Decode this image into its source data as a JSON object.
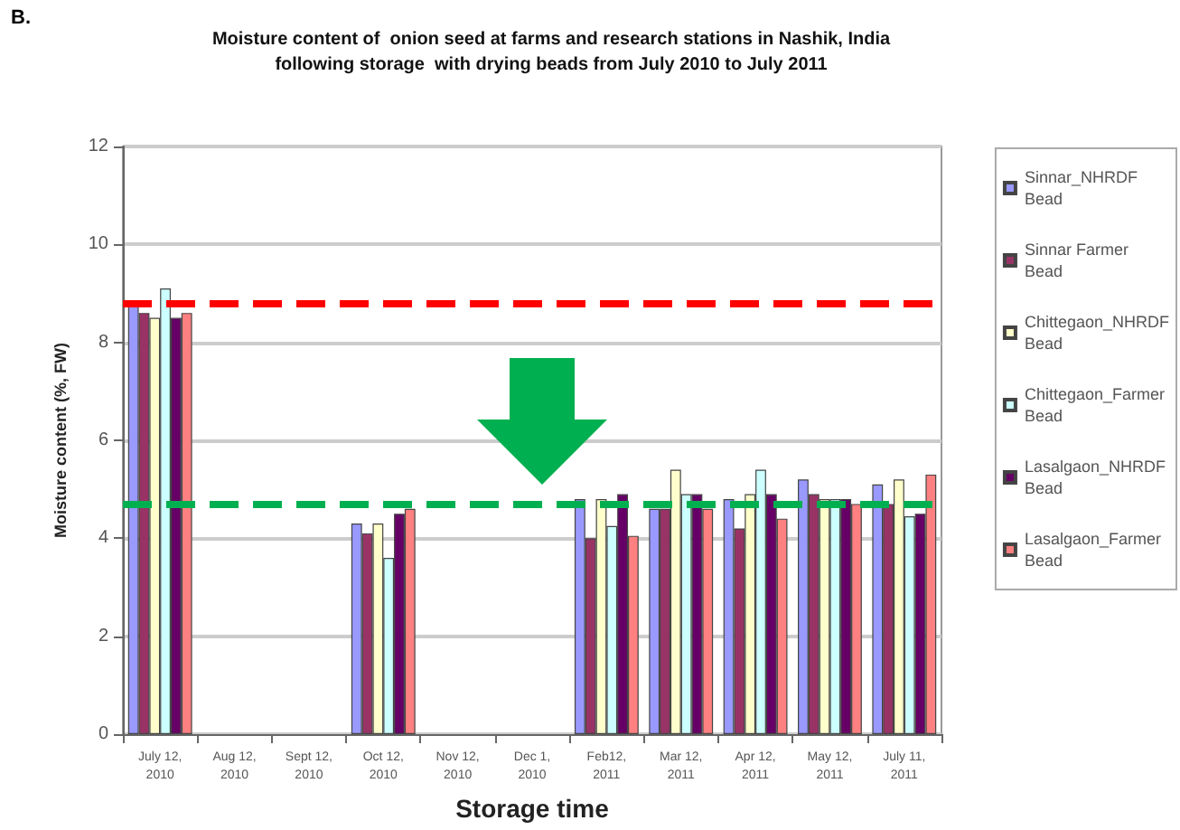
{
  "chart_data": {
    "type": "bar",
    "title": "Moisture content of  onion seed at farms and research stations in Nashik, India\nfollowing storage  with drying beads from July 2010 to July 2011",
    "annotations": [
      "B."
    ],
    "xlabel": "Storage time",
    "ylabel": "Moisture content (%, FW)",
    "categories": [
      "July 12, 2010",
      "Aug 12, 2010",
      "Sept 12, 2010",
      "Oct 12, 2010",
      "Nov 12, 2010",
      "Dec 1, 2010",
      "Feb12, 2011",
      "Mar 12, 2011",
      "Apr 12, 2011",
      "May 12, 2011",
      "July 11, 2011"
    ],
    "series": [
      {
        "name": "Sinnar_NHRDF Bead",
        "color": "#9999ff",
        "values": [
          8.8,
          null,
          null,
          4.3,
          null,
          null,
          4.8,
          4.6,
          4.8,
          5.2,
          5.1
        ]
      },
      {
        "name": "Sinnar Farmer Bead",
        "color": "#993366",
        "values": [
          8.6,
          null,
          null,
          4.1,
          null,
          null,
          4.0,
          4.6,
          4.2,
          4.9,
          4.7
        ]
      },
      {
        "name": "Chittegaon_NHRDF Bead",
        "color": "#ffffcc",
        "values": [
          8.5,
          null,
          null,
          4.3,
          null,
          null,
          4.8,
          5.4,
          4.9,
          4.8,
          5.2
        ]
      },
      {
        "name": "Chittegaon_Farmer Bead",
        "color": "#ccffff",
        "values": [
          9.1,
          null,
          null,
          3.6,
          null,
          null,
          4.25,
          4.9,
          5.4,
          4.8,
          4.45
        ]
      },
      {
        "name": "Lasalgaon_NHRDF Bead",
        "color": "#660066",
        "values": [
          8.5,
          null,
          null,
          4.5,
          null,
          null,
          4.9,
          4.9,
          4.9,
          4.8,
          4.5
        ]
      },
      {
        "name": "Lasalgaon_Farmer Bead",
        "color": "#ff8080",
        "values": [
          8.6,
          null,
          null,
          4.6,
          null,
          null,
          4.05,
          4.6,
          4.4,
          4.7,
          5.3
        ]
      }
    ],
    "ylim": [
      0,
      12
    ],
    "yticks": [
      0,
      2,
      4,
      6,
      8,
      10,
      12
    ],
    "grid": "y",
    "legend": "right",
    "ref_lines": [
      {
        "axis": "y",
        "value": 8.8,
        "color": "#ff0000",
        "line_style": "dashed"
      },
      {
        "axis": "y",
        "value": 4.7,
        "color": "#00b050",
        "line_style": "dashed"
      }
    ]
  }
}
